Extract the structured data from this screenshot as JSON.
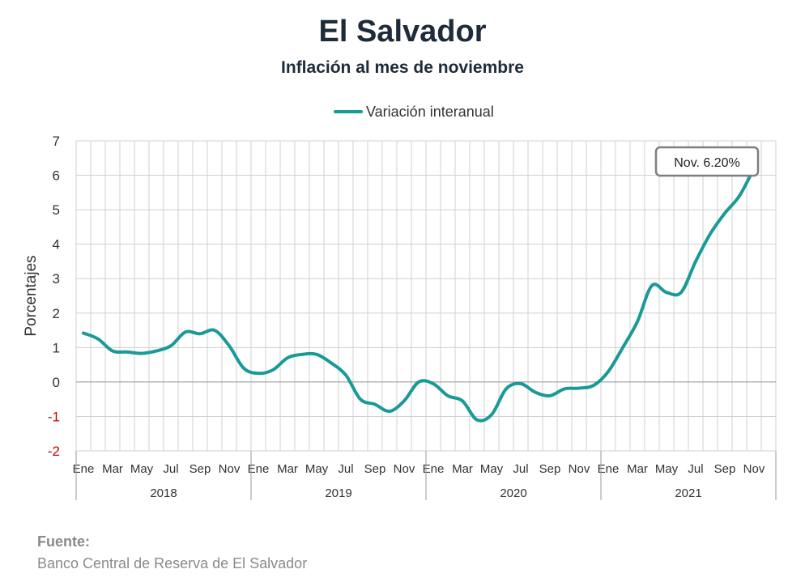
{
  "title": "El Salvador",
  "subtitle": "Inflación al mes de noviembre",
  "source": {
    "heading": "Fuente:",
    "text": "Banco Central de Reserva de El Salvador"
  },
  "colors": {
    "line": "#1a9a96",
    "negative_tick": "#cc0000",
    "grid": "#d0d0d0"
  },
  "chart_data": {
    "type": "line",
    "title": "El Salvador",
    "subtitle": "Inflación al mes de noviembre",
    "ylabel": "Porcentajes",
    "xlabel": "",
    "ylim": [
      -2,
      7
    ],
    "yticks": [
      7,
      6,
      5,
      4,
      3,
      2,
      1,
      0,
      -1,
      -2
    ],
    "grid": true,
    "legend": "top-center",
    "years": [
      "2018",
      "2019",
      "2020",
      "2021"
    ],
    "month_tick_labels": [
      "Ene",
      "Mar",
      "May",
      "Jul",
      "Sep",
      "Nov"
    ],
    "x": [
      "2018-01",
      "2018-02",
      "2018-03",
      "2018-04",
      "2018-05",
      "2018-06",
      "2018-07",
      "2018-08",
      "2018-09",
      "2018-10",
      "2018-11",
      "2018-12",
      "2019-01",
      "2019-02",
      "2019-03",
      "2019-04",
      "2019-05",
      "2019-06",
      "2019-07",
      "2019-08",
      "2019-09",
      "2019-10",
      "2019-11",
      "2019-12",
      "2020-01",
      "2020-02",
      "2020-03",
      "2020-04",
      "2020-05",
      "2020-06",
      "2020-07",
      "2020-08",
      "2020-09",
      "2020-10",
      "2020-11",
      "2020-12",
      "2021-01",
      "2021-02",
      "2021-03",
      "2021-04",
      "2021-05",
      "2021-06",
      "2021-07",
      "2021-08",
      "2021-09",
      "2021-10",
      "2021-11"
    ],
    "series": [
      {
        "name": "Variación interanual",
        "values": [
          1.42,
          1.25,
          0.9,
          0.87,
          0.83,
          0.9,
          1.05,
          1.45,
          1.4,
          1.5,
          1.05,
          0.4,
          0.25,
          0.35,
          0.7,
          0.8,
          0.8,
          0.55,
          0.2,
          -0.5,
          -0.65,
          -0.85,
          -0.55,
          0.0,
          -0.05,
          -0.4,
          -0.55,
          -1.1,
          -0.95,
          -0.2,
          -0.05,
          -0.3,
          -0.4,
          -0.2,
          -0.18,
          -0.1,
          0.3,
          1.0,
          1.75,
          2.8,
          2.6,
          2.6,
          3.5,
          4.3,
          4.9,
          5.4,
          6.2
        ]
      }
    ],
    "annotation": {
      "text": "Nov. 6.20%",
      "x": "2021-11",
      "y": 6.2
    }
  }
}
